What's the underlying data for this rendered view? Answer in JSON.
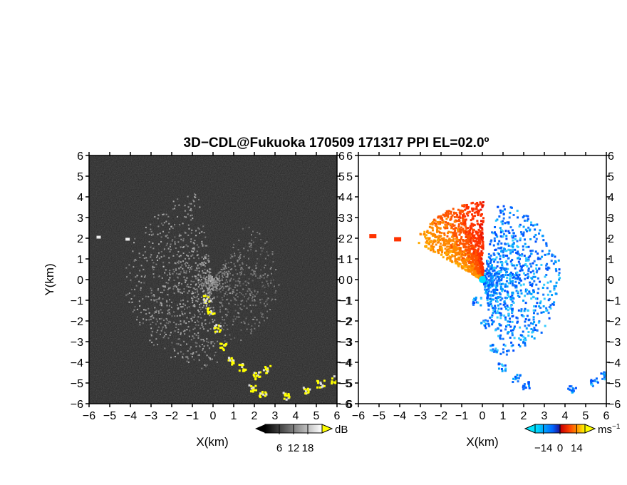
{
  "chart_data": [
    {
      "type": "heatmap",
      "panel": "reflectivity",
      "title": "3D−CDL@Fukuoka 170509 171317 PPI EL=02.0º",
      "xlabel": "X(km)",
      "ylabel": "Y(km)",
      "xlim": [
        -6,
        6
      ],
      "ylim": [
        -6,
        6
      ],
      "xticks": [
        "−6",
        "−5",
        "−4",
        "−3",
        "−2",
        "−1",
        "0",
        "1",
        "2",
        "3",
        "4",
        "5",
        "6"
      ],
      "yticks": [
        "6",
        "5",
        "4",
        "3",
        "2",
        "1",
        "0",
        "−1",
        "−2",
        "−3",
        "−4",
        "−5",
        "−6"
      ],
      "colorbar": {
        "unit": "dB",
        "ticks": [
          "6",
          "12",
          "18"
        ],
        "range": [
          0,
          24
        ],
        "colors": [
          "#000000",
          "#ffffff"
        ],
        "highlight": "#ffff00"
      }
    },
    {
      "type": "heatmap",
      "panel": "doppler-velocity",
      "xlabel": "X(km)",
      "xlim": [
        -6,
        6
      ],
      "ylim": [
        -6,
        6
      ],
      "xticks": [
        "−6",
        "−5",
        "−4",
        "−3",
        "−2",
        "−1",
        "0",
        "1",
        "2",
        "3",
        "4",
        "5",
        "6"
      ],
      "yticks": [
        "6",
        "5",
        "4",
        "3",
        "2",
        "1",
        "0",
        "−1",
        "−2",
        "−3",
        "−4",
        "−5",
        "−6"
      ],
      "colorbar": {
        "unit": "ms",
        "unit_exp": "−1",
        "ticks": [
          "−14",
          "0",
          "14"
        ],
        "range": [
          -21,
          21
        ],
        "colors": [
          "#00e5ff",
          "#0066ff",
          "#1a1aa0",
          "#c80000",
          "#ff4400",
          "#ffaa00",
          "#ffff00"
        ]
      }
    }
  ]
}
